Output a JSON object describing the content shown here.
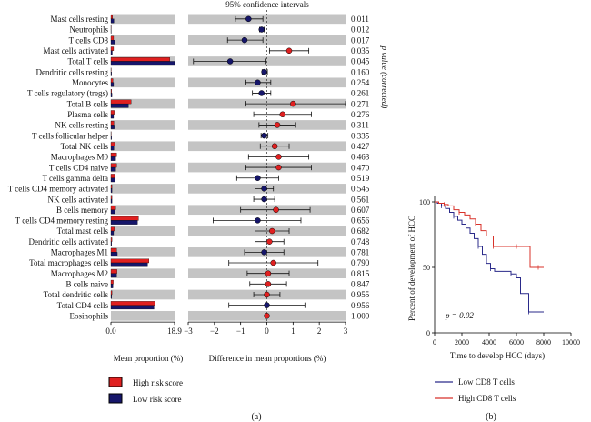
{
  "chart_data": [
    {
      "type": "bar",
      "panel": "a-left",
      "orientation": "horizontal",
      "xlabel": "Mean proportion (%)",
      "xlim": [
        0.0,
        18.9
      ],
      "tick_labels": [
        "0.0",
        "18.9"
      ],
      "categories": [
        "Mast cells resting",
        "Neutrophils",
        "T cells CD8",
        "Mast cells activated",
        "Total T cells",
        "Dendritic cells resting",
        "Monocytes",
        "T cells regulatory (tregs)",
        "Total B cells",
        "Plasma cells",
        "NK cells resting",
        "T cells follicular helper",
        "Total NK cells",
        "Macrophages M0",
        "T cells CD4 naive",
        "T cells gamma delta",
        "T cells CD4 memory activated",
        "NK cells activated",
        "B cells memory",
        "T cells CD4 memory resting",
        "Total mast cells",
        "Dendritic cells activated",
        "Macrophages M1",
        "Total macrophages cells",
        "Macrophages M2",
        "B cells naive",
        "Total dendritic cells",
        "Total CD4 cells",
        "Eosinophils"
      ],
      "series": [
        {
          "name": "High risk score",
          "color": "#e02020",
          "values": [
            0.5,
            0.1,
            0.8,
            0.8,
            17.5,
            0.1,
            0.6,
            0.2,
            6.0,
            1.0,
            0.9,
            0.1,
            1.1,
            1.7,
            1.7,
            1.1,
            0.3,
            0.3,
            1.4,
            8.2,
            1.0,
            0.3,
            1.7,
            11.3,
            1.8,
            0.7,
            0.3,
            13.0,
            0.0
          ]
        },
        {
          "name": "Low risk score",
          "color": "#16166a",
          "values": [
            0.9,
            0.1,
            1.1,
            0.4,
            18.9,
            0.2,
            0.8,
            0.3,
            5.2,
            0.8,
            1.0,
            0.2,
            0.9,
            1.4,
            1.4,
            1.3,
            0.3,
            0.3,
            1.1,
            7.9,
            0.8,
            0.2,
            1.9,
            10.9,
            1.7,
            0.6,
            0.2,
            12.8,
            0.0
          ]
        }
      ]
    },
    {
      "type": "scatter",
      "panel": "a-middle",
      "title": "95% confidence intervals",
      "xlabel": "Difference in mean proportions (%)",
      "xlim": [
        -3,
        3
      ],
      "tick_labels": [
        "−3",
        "−2",
        "−1",
        "0",
        "1",
        "2",
        "3"
      ],
      "points": [
        {
          "est": -0.7,
          "lo": -1.2,
          "hi": -0.15,
          "color": "#16166a"
        },
        {
          "est": -0.2,
          "lo": -0.28,
          "hi": -0.1,
          "color": "#16166a"
        },
        {
          "est": -0.85,
          "lo": -1.5,
          "hi": -0.15,
          "color": "#16166a"
        },
        {
          "est": 0.85,
          "lo": 0.1,
          "hi": 1.6,
          "color": "#e02020"
        },
        {
          "est": -1.4,
          "lo": -2.8,
          "hi": -0.03,
          "color": "#16166a"
        },
        {
          "est": -0.1,
          "lo": -0.18,
          "hi": 0.02,
          "color": "#16166a"
        },
        {
          "est": -0.35,
          "lo": -0.8,
          "hi": 0.15,
          "color": "#16166a"
        },
        {
          "est": -0.2,
          "lo": -0.55,
          "hi": 0.15,
          "color": "#16166a"
        },
        {
          "est": 1.0,
          "lo": -0.8,
          "hi": 3.0,
          "color": "#e02020"
        },
        {
          "est": 0.6,
          "lo": -0.5,
          "hi": 1.7,
          "color": "#e02020"
        },
        {
          "est": 0.4,
          "lo": -0.3,
          "hi": 1.1,
          "color": "#e02020"
        },
        {
          "est": -0.1,
          "lo": -0.22,
          "hi": 0.04,
          "color": "#16166a"
        },
        {
          "est": 0.3,
          "lo": -0.25,
          "hi": 0.85,
          "color": "#e02020"
        },
        {
          "est": 0.45,
          "lo": -0.7,
          "hi": 1.6,
          "color": "#e02020"
        },
        {
          "est": 0.45,
          "lo": -0.8,
          "hi": 1.7,
          "color": "#e02020"
        },
        {
          "est": -0.35,
          "lo": -1.15,
          "hi": 0.45,
          "color": "#16166a"
        },
        {
          "est": -0.1,
          "lo": -0.45,
          "hi": 0.25,
          "color": "#16166a"
        },
        {
          "est": -0.1,
          "lo": -0.5,
          "hi": 0.3,
          "color": "#16166a"
        },
        {
          "est": 0.35,
          "lo": -1.0,
          "hi": 1.65,
          "color": "#e02020"
        },
        {
          "est": -0.35,
          "lo": -2.05,
          "hi": 1.3,
          "color": "#16166a"
        },
        {
          "est": 0.2,
          "lo": -0.45,
          "hi": 0.85,
          "color": "#e02020"
        },
        {
          "est": 0.1,
          "lo": -0.45,
          "hi": 0.65,
          "color": "#e02020"
        },
        {
          "est": -0.1,
          "lo": -0.85,
          "hi": 0.65,
          "color": "#16166a"
        },
        {
          "est": 0.25,
          "lo": -1.45,
          "hi": 1.95,
          "color": "#e02020"
        },
        {
          "est": 0.05,
          "lo": -0.75,
          "hi": 0.85,
          "color": "#e02020"
        },
        {
          "est": 0.05,
          "lo": -0.65,
          "hi": 0.75,
          "color": "#e02020"
        },
        {
          "est": 0.0,
          "lo": -0.5,
          "hi": 0.5,
          "color": "#e02020"
        },
        {
          "est": 0.0,
          "lo": -1.45,
          "hi": 1.45,
          "color": "#16166a"
        },
        {
          "est": 0.0,
          "lo": 0.0,
          "hi": 0.0,
          "color": "#e02020"
        }
      ]
    },
    {
      "type": "table",
      "panel": "a-right",
      "axis_label": "p value (corrected)",
      "values": [
        "0.011",
        "0.012",
        "0.017",
        "0.035",
        "0.045",
        "0.160",
        "0.254",
        "0.261",
        "0.271",
        "0.276",
        "0.311",
        "0.335",
        "0.427",
        "0.463",
        "0.470",
        "0.519",
        "0.545",
        "0.561",
        "0.607",
        "0.656",
        "0.682",
        "0.748",
        "0.781",
        "0.790",
        "0.815",
        "0.847",
        "0.955",
        "0.956",
        "1.000"
      ]
    },
    {
      "type": "line",
      "panel": "b",
      "xlabel": "Time to develop HCC (days)",
      "ylabel": "Percent of development of HCC",
      "xlim": [
        0,
        10000
      ],
      "ylim": [
        0,
        100
      ],
      "xticks": [
        "0",
        "2000",
        "4000",
        "6000",
        "8000",
        "10000"
      ],
      "yticks": [
        "0",
        "50",
        "100"
      ],
      "annotation": "p = 0.02",
      "series": [
        {
          "name": "Low CD8 T cells",
          "color": "#2a2a8a",
          "x": [
            0,
            200,
            500,
            800,
            1100,
            1400,
            1700,
            2000,
            2300,
            2600,
            2900,
            3200,
            3500,
            3800,
            4100,
            4400,
            5000,
            5600,
            6000,
            6300,
            6900,
            7400,
            8000
          ],
          "y": [
            100,
            99,
            97,
            95,
            92,
            89,
            86,
            83,
            80,
            76,
            72,
            66,
            60,
            53,
            49,
            47,
            47,
            45,
            42,
            30,
            16,
            16,
            16
          ]
        },
        {
          "name": "High CD8 T cells",
          "color": "#d8322a",
          "x": [
            0,
            300,
            700,
            1000,
            1400,
            1800,
            2200,
            2600,
            3000,
            3400,
            3800,
            4300,
            4800,
            5500,
            6000,
            6800,
            7000,
            7600,
            8000
          ],
          "y": [
            100,
            99,
            98,
            97,
            94,
            92,
            90,
            87,
            83,
            78,
            74,
            66,
            66,
            66,
            66,
            66,
            50,
            50,
            50
          ]
        }
      ]
    }
  ],
  "legend_a": {
    "high": {
      "label": "High risk score",
      "color": "#e02020"
    },
    "low": {
      "label": "Low risk score",
      "color": "#16166a"
    }
  },
  "panel_labels": {
    "a": "(a)",
    "b": "(b)"
  }
}
